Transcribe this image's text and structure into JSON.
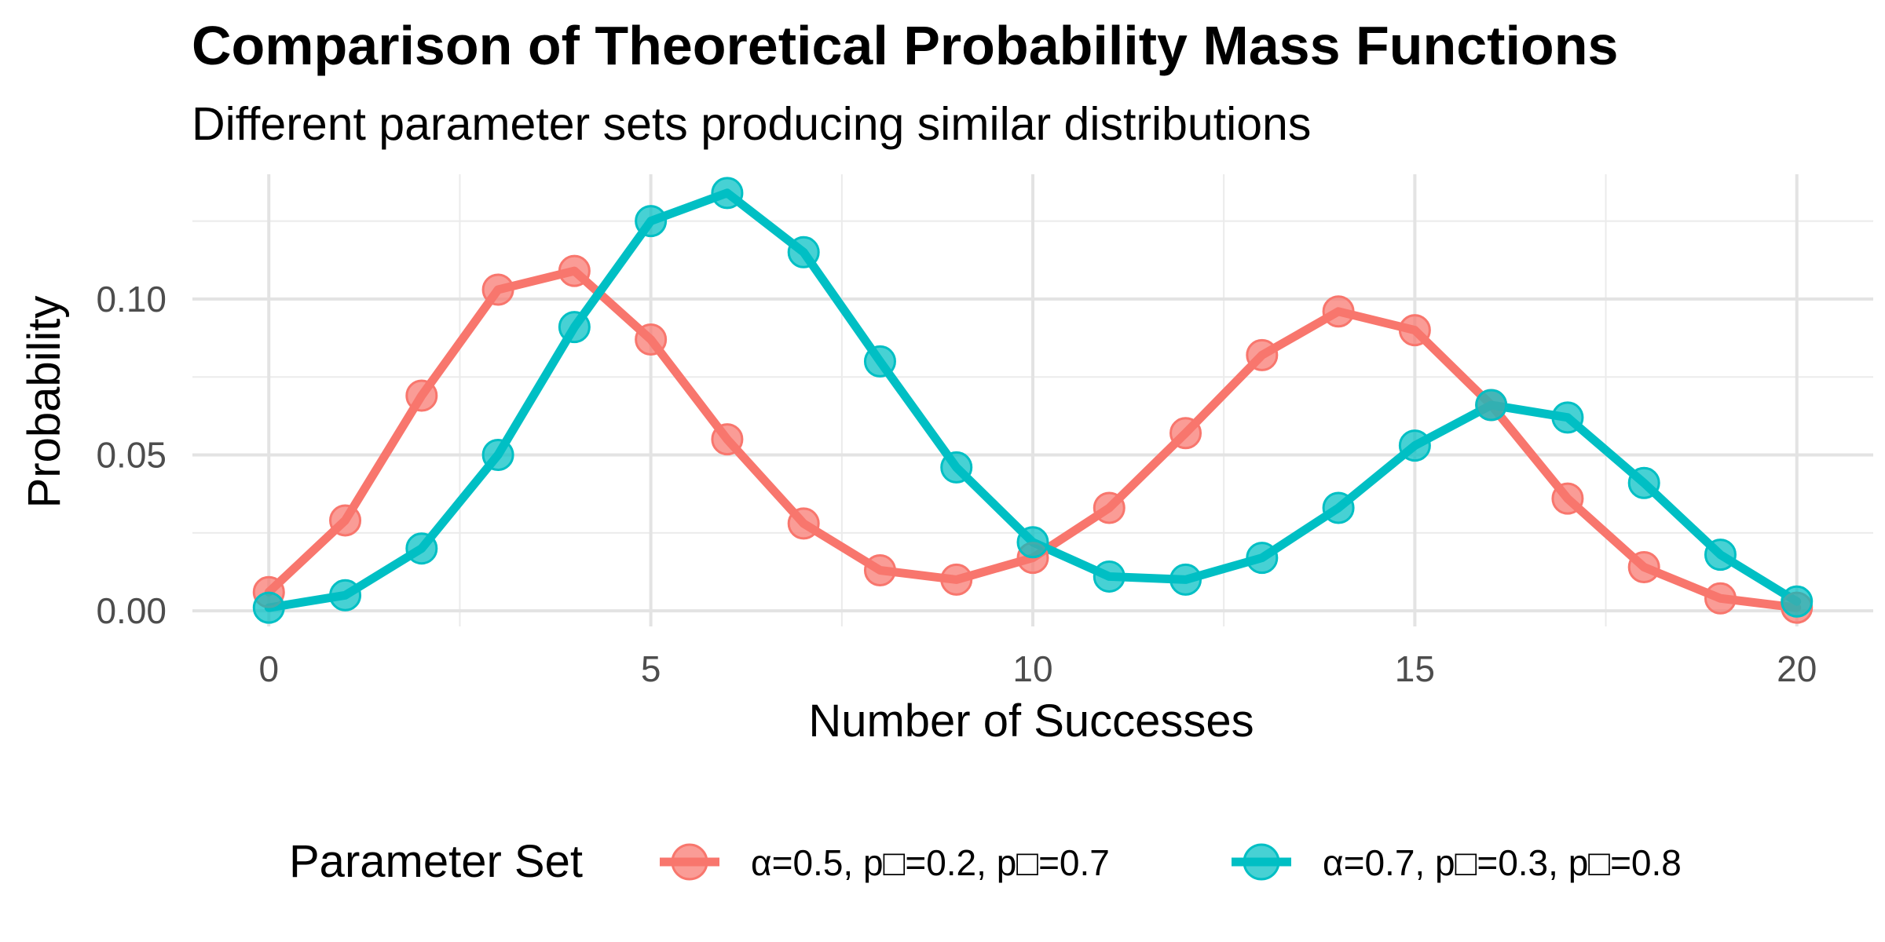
{
  "chart_data": {
    "type": "line",
    "title": "Comparison of Theoretical Probability Mass Functions",
    "subtitle": "Different parameter sets producing similar distributions",
    "xlabel": "Number of Successes",
    "ylabel": "Probability",
    "xlim": [
      -1,
      21
    ],
    "ylim": [
      -0.005,
      0.14
    ],
    "x_ticks": [
      0,
      5,
      10,
      15,
      20
    ],
    "x_tick_labels": [
      "0",
      "5",
      "10",
      "15",
      "20"
    ],
    "y_ticks": [
      0.0,
      0.05,
      0.1
    ],
    "y_tick_labels": [
      "0.00",
      "0.05",
      "0.10"
    ],
    "grid": true,
    "legend_position": "bottom",
    "legend_title": "Parameter Set",
    "x": [
      0,
      1,
      2,
      3,
      4,
      5,
      6,
      7,
      8,
      9,
      10,
      11,
      12,
      13,
      14,
      15,
      16,
      17,
      18,
      19,
      20
    ],
    "series": [
      {
        "name": "α=0.5, p□=0.2, p□=0.7",
        "color": "#F8766D",
        "values": [
          0.006,
          0.029,
          0.069,
          0.103,
          0.109,
          0.087,
          0.055,
          0.028,
          0.013,
          0.01,
          0.017,
          0.033,
          0.057,
          0.082,
          0.096,
          0.09,
          0.066,
          0.036,
          0.014,
          0.004,
          0.001
        ]
      },
      {
        "name": "α=0.7, p□=0.3, p□=0.8",
        "color": "#00BFC4",
        "values": [
          0.001,
          0.005,
          0.02,
          0.05,
          0.091,
          0.125,
          0.134,
          0.115,
          0.08,
          0.046,
          0.022,
          0.011,
          0.01,
          0.017,
          0.033,
          0.053,
          0.066,
          0.062,
          0.041,
          0.018,
          0.003
        ]
      }
    ]
  }
}
